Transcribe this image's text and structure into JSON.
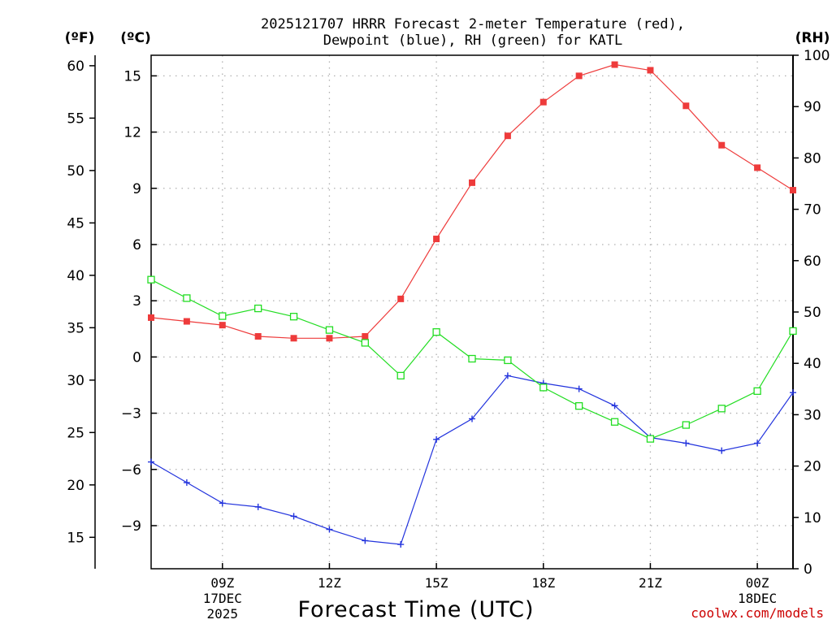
{
  "title_lines": [
    "2025121707 HRRR Forecast 2-meter Temperature (red),",
    "Dewpoint (blue), RH (green) for KATL"
  ],
  "units": {
    "fahrenheit": "(ºF)",
    "celsius": "(ºC)",
    "rh": "(RH)"
  },
  "credit": "coolwx.com/models",
  "colors": {
    "temperature": "#ee3b3b",
    "dewpoint": "#2233dd",
    "rh": "#22dd22",
    "axis": "#000000",
    "grid": "#b0b0b0"
  },
  "chart_data": {
    "type": "line",
    "title": "2025121707 HRRR Forecast 2-meter Temperature (red), Dewpoint (blue), RH (green) for KATL",
    "xlabel": "Forecast Time (UTC)",
    "x_hours": [
      7,
      8,
      9,
      10,
      11,
      12,
      13,
      14,
      15,
      16,
      17,
      18,
      19,
      20,
      21,
      22,
      23,
      24,
      25
    ],
    "xlim": [
      7,
      25
    ],
    "xticks": [
      {
        "hour": 9,
        "lines": [
          "09Z",
          "17DEC",
          "2025"
        ]
      },
      {
        "hour": 12,
        "lines": [
          "12Z"
        ]
      },
      {
        "hour": 15,
        "lines": [
          "15Z"
        ]
      },
      {
        "hour": 18,
        "lines": [
          "18Z"
        ]
      },
      {
        "hour": 21,
        "lines": [
          "21Z"
        ]
      },
      {
        "hour": 24,
        "lines": [
          "00Z",
          "18DEC"
        ]
      }
    ],
    "celsius_axis": {
      "ylim": [
        -11.3,
        16.1
      ],
      "ticks": [
        15,
        12,
        9,
        6,
        3,
        0,
        -3,
        -6,
        -9
      ]
    },
    "fahrenheit_axis": {
      "ylim": [
        12.0,
        61.0
      ],
      "ticks": [
        60,
        55,
        50,
        45,
        40,
        35,
        30,
        25,
        20,
        15
      ]
    },
    "rh_axis": {
      "ylim": [
        0,
        100
      ],
      "ticks": [
        100,
        90,
        80,
        70,
        60,
        50,
        40,
        30,
        20,
        10,
        0
      ]
    },
    "series": [
      {
        "name": "Temperature",
        "axis": "celsius",
        "marker": "filled-square",
        "color": "#ee3b3b",
        "values": [
          2.1,
          1.9,
          1.7,
          1.1,
          1.0,
          1.0,
          1.1,
          3.1,
          6.3,
          9.3,
          11.8,
          13.6,
          15.0,
          15.6,
          15.3,
          13.4,
          11.3,
          10.1,
          8.9
        ]
      },
      {
        "name": "Dewpoint",
        "axis": "celsius",
        "marker": "plus",
        "color": "#2233dd",
        "values": [
          -5.6,
          -6.7,
          -7.8,
          -8.0,
          -8.5,
          -9.2,
          -9.8,
          -10.0,
          -4.4,
          -3.3,
          -1.0,
          -1.4,
          -1.7,
          -2.6,
          -4.3,
          -4.6,
          -5.0,
          -4.6,
          -1.9
        ]
      },
      {
        "name": "RH",
        "axis": "rh",
        "marker": "open-square",
        "color": "#22dd22",
        "values": [
          56.3,
          52.7,
          49.2,
          50.7,
          49.1,
          46.5,
          44.0,
          37.6,
          46.1,
          40.9,
          40.6,
          35.3,
          31.7,
          28.6,
          25.3,
          28.0,
          31.2,
          34.6,
          46.3
        ]
      }
    ]
  }
}
